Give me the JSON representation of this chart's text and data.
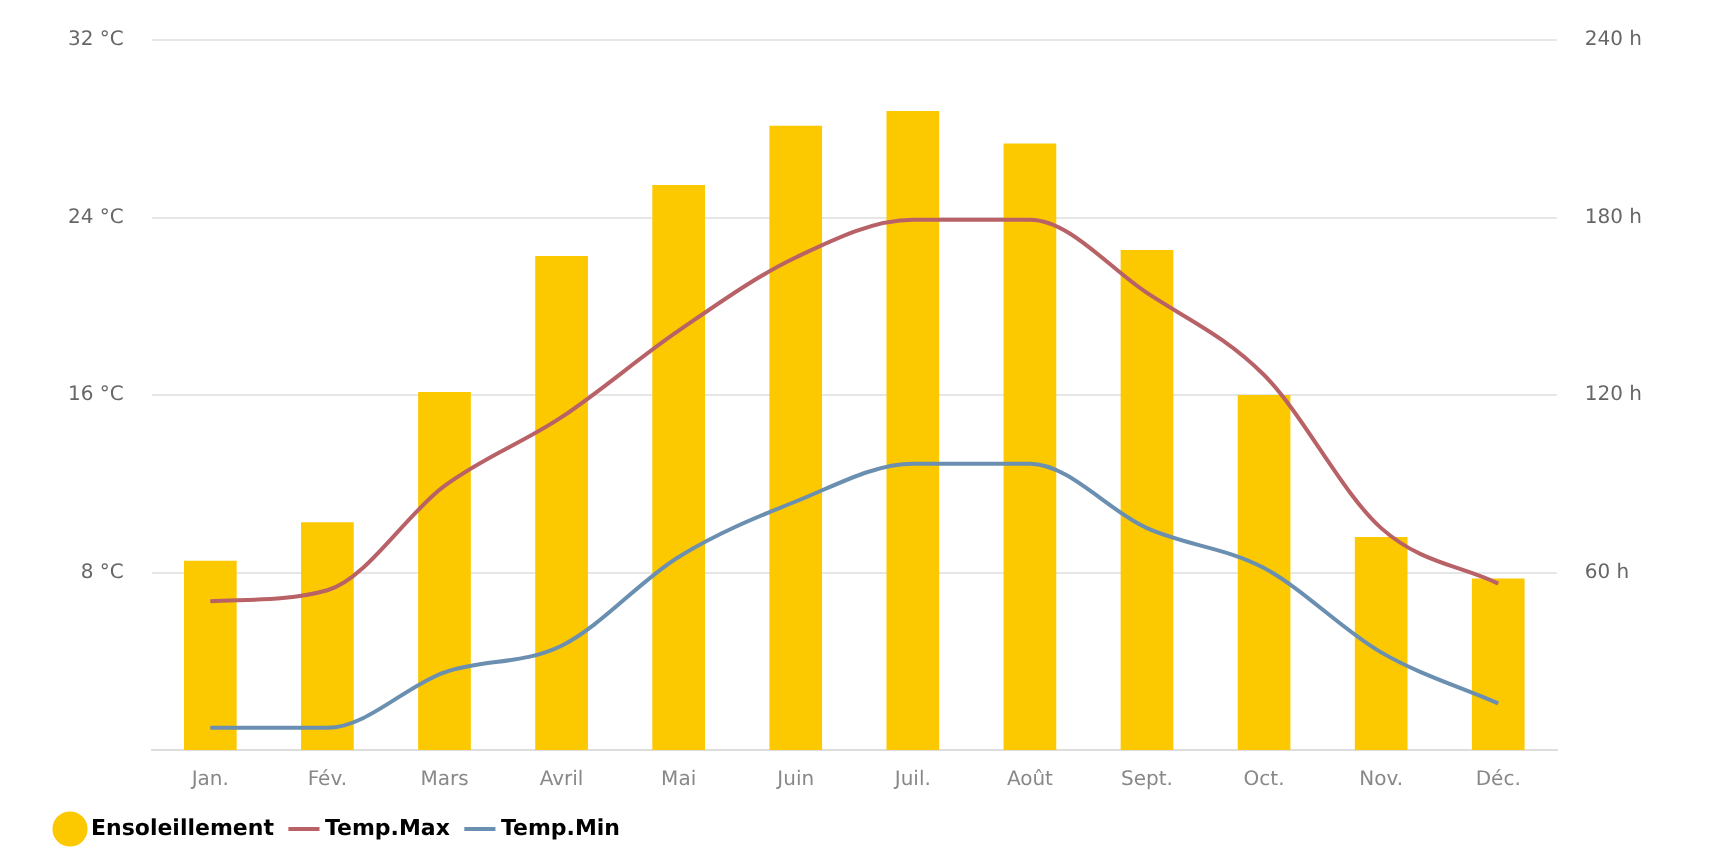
{
  "chart_data": {
    "type": "bar",
    "categories": [
      "Jan.",
      "Fév.",
      "Mars",
      "Avril",
      "Mai",
      "Juin",
      "Juil.",
      "Août",
      "Sept.",
      "Oct.",
      "Nov.",
      "Déc."
    ],
    "series": [
      {
        "name": "Ensoleillement",
        "axis": "y2",
        "color": "#fcc800",
        "values": [
          64,
          77,
          121,
          167,
          191,
          211,
          216,
          205,
          169,
          120,
          72,
          58
        ]
      },
      {
        "name": "Temp.Max",
        "type": "line",
        "color": "#b86166",
        "values": [
          6.7,
          7.2,
          11.9,
          15,
          18.9,
          22.2,
          23.9,
          23.9,
          20.6,
          16.9,
          10,
          7.5
        ]
      },
      {
        "name": "Temp.Min",
        "type": "line",
        "color": "#6a8fb0",
        "values": [
          1.0,
          1.0,
          3.5,
          4.7,
          8.7,
          11.2,
          12.9,
          12.9,
          10,
          8.2,
          4.4,
          2.1
        ]
      }
    ],
    "ylim": [
      0,
      32
    ],
    "yticks": [
      {
        "value": 0,
        "label": null
      },
      {
        "value": 8,
        "label": "8 °C"
      },
      {
        "value": 16,
        "label": "16 °C"
      },
      {
        "value": 24,
        "label": "24 °C"
      },
      {
        "value": 32,
        "label": "32 °C"
      }
    ],
    "y2lim": [
      0,
      240
    ],
    "y2ticks": [
      {
        "value": 0,
        "label": null
      },
      {
        "value": 60,
        "label": "60 h"
      },
      {
        "value": 120,
        "label": "120 h"
      },
      {
        "value": 180,
        "label": "180 h"
      },
      {
        "value": 240,
        "label": "240 h"
      }
    ],
    "grid": "y",
    "legend": "bottom left",
    "marker": "none",
    "line_style": "solid"
  }
}
